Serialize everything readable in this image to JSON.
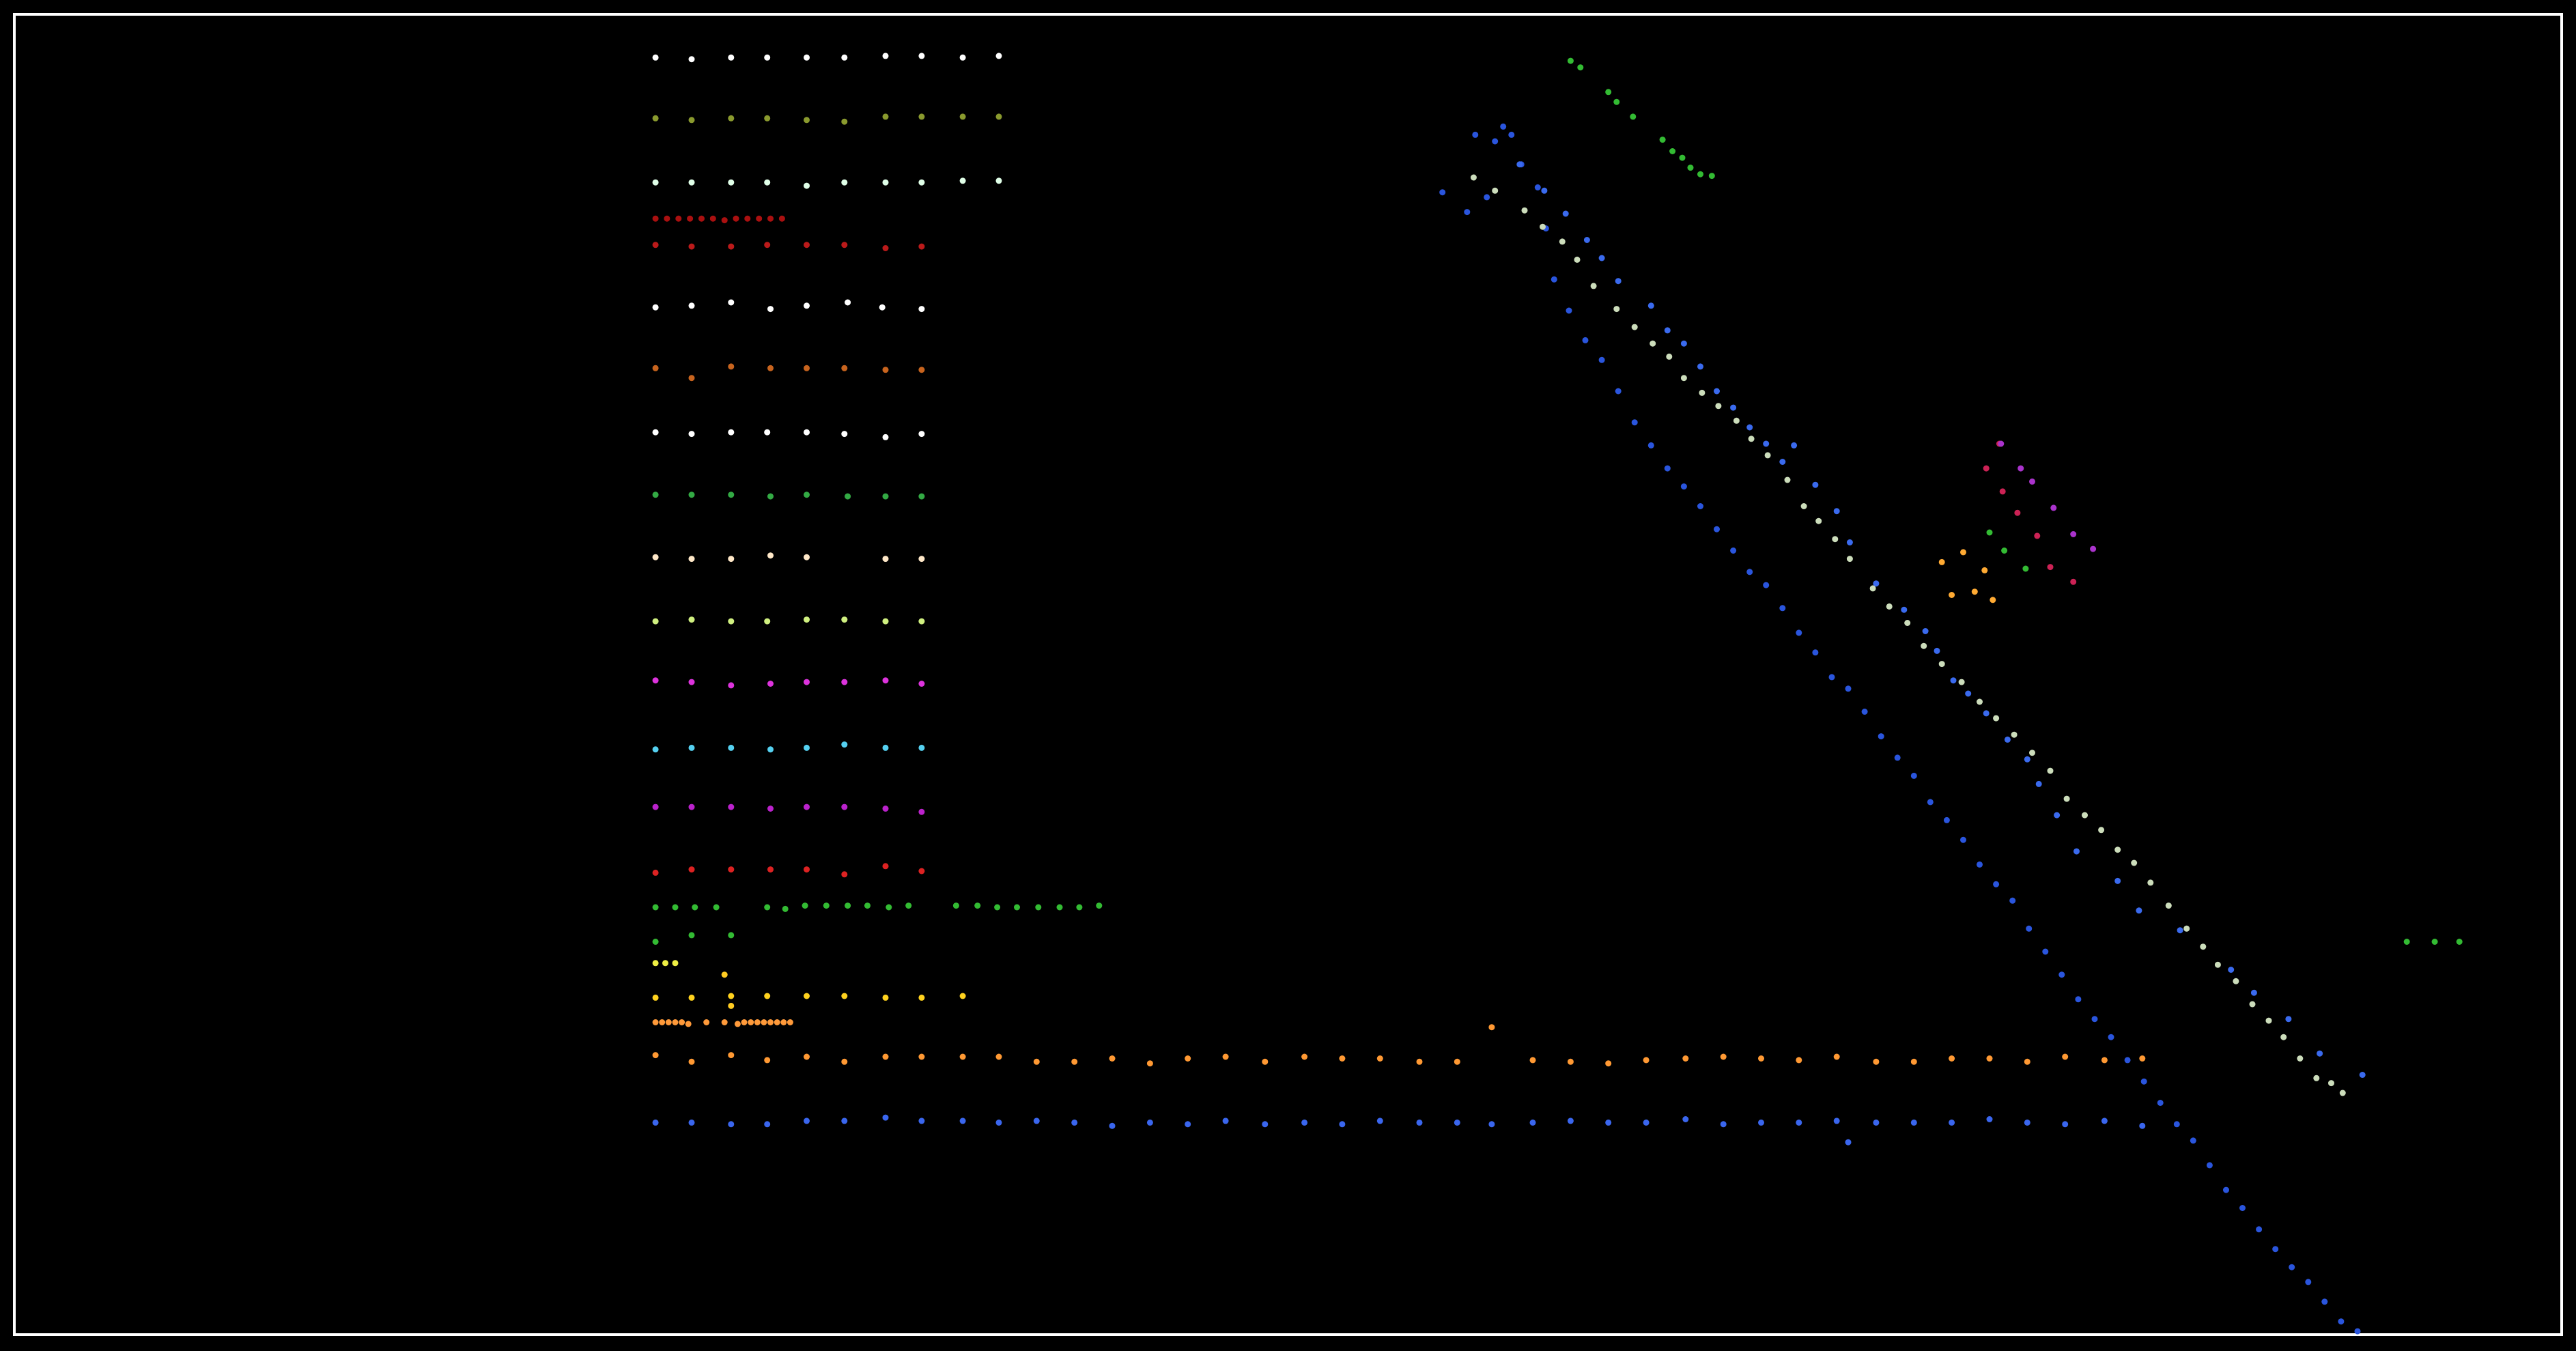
{
  "chart_data": {
    "type": "scatter",
    "title": "",
    "xlabel": "",
    "ylabel": "",
    "axes_visible": false,
    "grid": false,
    "legend": "none",
    "frame_color": "#ffffff",
    "background": "#000000",
    "xlim": [
      0,
      1568
    ],
    "ylim": [
      0,
      822
    ],
    "series": [
      {
        "color": "#ffffff",
        "x": [
          399,
          421,
          445,
          467,
          491,
          514,
          539,
          561,
          586,
          608
        ],
        "y": [
          787,
          786,
          787,
          787,
          787,
          787,
          788,
          788,
          787,
          788
        ]
      },
      {
        "color": "#8a9a2e",
        "x": [
          399,
          421,
          445,
          467,
          491,
          514,
          539,
          561,
          586,
          608
        ],
        "y": [
          750,
          749,
          750,
          750,
          749,
          748,
          751,
          751,
          751,
          751
        ]
      },
      {
        "color": "#e0ffe8",
        "x": [
          399,
          421,
          445,
          467,
          491,
          514,
          539,
          561,
          586,
          608
        ],
        "y": [
          711,
          711,
          711,
          711,
          709,
          711,
          711,
          711,
          712,
          712
        ]
      },
      {
        "color": "#aa1010",
        "x": [
          399,
          406,
          413,
          420,
          427,
          434,
          441,
          448,
          455,
          462,
          469,
          476
        ],
        "y": [
          689,
          689,
          689,
          689,
          689,
          689,
          688,
          689,
          689,
          689,
          689,
          689
        ]
      },
      {
        "color": "#bb1a1a",
        "x": [
          399,
          421,
          445,
          467,
          491,
          514,
          539,
          561
        ],
        "y": [
          673,
          672,
          672,
          673,
          673,
          673,
          671,
          672
        ]
      },
      {
        "color": "#ffffff",
        "x": [
          399,
          421,
          445,
          469,
          491,
          516,
          537,
          561
        ],
        "y": [
          635,
          636,
          638,
          634,
          636,
          638,
          635,
          634
        ]
      },
      {
        "color": "#c8641e",
        "x": [
          399,
          421,
          445,
          469,
          491,
          514,
          539,
          561
        ],
        "y": [
          598,
          592,
          599,
          598,
          598,
          598,
          597,
          597
        ]
      },
      {
        "color": "#ffffff",
        "x": [
          399,
          421,
          445,
          467,
          491,
          514,
          539,
          561
        ],
        "y": [
          559,
          558,
          559,
          559,
          559,
          558,
          556,
          558
        ]
      },
      {
        "color": "#33aa44",
        "x": [
          399,
          421,
          445,
          469,
          491,
          516,
          539,
          561
        ],
        "y": [
          521,
          521,
          521,
          520,
          521,
          520,
          520,
          520
        ]
      },
      {
        "color": "#ffe8c8",
        "x": [
          399,
          421,
          445,
          469,
          491,
          539,
          561
        ],
        "y": [
          483,
          482,
          482,
          484,
          483,
          482,
          482
        ]
      },
      {
        "color": "#d0f080",
        "x": [
          399,
          421,
          445,
          467,
          491,
          514,
          539,
          561
        ],
        "y": [
          444,
          445,
          444,
          444,
          445,
          445,
          444,
          444
        ]
      },
      {
        "color": "#dd33dd",
        "x": [
          399,
          421,
          445,
          469,
          491,
          514,
          539,
          561
        ],
        "y": [
          408,
          407,
          405,
          406,
          407,
          407,
          408,
          406
        ]
      },
      {
        "color": "#55d0f0",
        "x": [
          399,
          421,
          445,
          469,
          491,
          514,
          539,
          561
        ],
        "y": [
          366,
          367,
          367,
          366,
          367,
          369,
          367,
          367
        ]
      },
      {
        "color": "#bb22cc",
        "x": [
          399,
          421,
          445,
          469,
          491,
          514,
          539,
          561
        ],
        "y": [
          331,
          331,
          331,
          330,
          331,
          331,
          330,
          328
        ]
      },
      {
        "color": "#dd2222",
        "x": [
          399,
          421,
          445,
          469,
          491,
          514,
          539,
          561
        ],
        "y": [
          291,
          293,
          293,
          293,
          293,
          290,
          295,
          292
        ]
      },
      {
        "color": "#33bb33",
        "x": [
          399,
          411,
          423,
          436,
          467,
          478,
          490,
          503,
          516,
          528,
          541,
          553,
          582,
          595,
          607,
          619,
          632,
          645,
          657,
          669
        ],
        "y": [
          270,
          270,
          270,
          270,
          270,
          269,
          271,
          271,
          271,
          271,
          270,
          271,
          271,
          271,
          270,
          270,
          270,
          270,
          270,
          271
        ]
      },
      {
        "color": "#33bb33",
        "x": [
          399,
          421,
          445
        ],
        "y": [
          249,
          253,
          253
        ]
      },
      {
        "color": "#eeee44",
        "x": [
          399,
          405,
          411
        ],
        "y": [
          236,
          236,
          236
        ]
      },
      {
        "color": "#ffd21e",
        "x": [
          399,
          421,
          445,
          467,
          491,
          514,
          539,
          561,
          586
        ],
        "y": [
          215,
          215,
          216,
          216,
          216,
          216,
          215,
          215,
          216
        ]
      },
      {
        "color": "#ffcc22",
        "x": [
          441,
          445
        ],
        "y": [
          229,
          210
        ]
      },
      {
        "color": "#ff9a3a",
        "x": [
          399,
          403,
          407,
          411,
          415,
          419,
          430,
          441,
          449,
          453,
          457,
          461,
          465,
          469,
          473,
          477,
          481
        ],
        "y": [
          200,
          200,
          200,
          200,
          200,
          199,
          200,
          200,
          199,
          200,
          200,
          200,
          200,
          200,
          200,
          200,
          200
        ]
      },
      {
        "color": "#ff9933",
        "x": [
          399,
          421,
          445,
          467,
          491,
          514,
          539,
          561,
          586,
          608,
          631,
          654,
          677,
          700,
          723,
          746,
          770,
          794,
          817,
          840,
          864,
          887,
          908,
          933,
          956,
          979,
          1002,
          1026,
          1049,
          1072,
          1095,
          1118,
          1142,
          1165,
          1188,
          1211,
          1234,
          1257,
          1281,
          1304
        ],
        "y": [
          180,
          176,
          180,
          177,
          179,
          176,
          179,
          179,
          179,
          179,
          176,
          176,
          178,
          175,
          178,
          179,
          176,
          179,
          178,
          178,
          176,
          176,
          197,
          177,
          176,
          175,
          177,
          178,
          179,
          178,
          177,
          179,
          176,
          176,
          178,
          178,
          176,
          179,
          177,
          178
        ]
      },
      {
        "color": "#3a66ee",
        "x": [
          399,
          421,
          445,
          467,
          491,
          514,
          539,
          561,
          586,
          608,
          631,
          654,
          677,
          700,
          723,
          746,
          770,
          794,
          817,
          840,
          864,
          887,
          908,
          933,
          956,
          979,
          1002,
          1026,
          1049,
          1072,
          1095,
          1118,
          1125,
          1142,
          1165,
          1188,
          1211,
          1234,
          1257,
          1281,
          1304
        ],
        "y": [
          139,
          139,
          138,
          138,
          140,
          140,
          142,
          140,
          140,
          139,
          140,
          139,
          137,
          139,
          138,
          140,
          138,
          139,
          138,
          140,
          139,
          139,
          138,
          139,
          140,
          139,
          139,
          141,
          138,
          139,
          139,
          140,
          127,
          139,
          139,
          139,
          141,
          139,
          138,
          140,
          137
        ]
      },
      {
        "color": "#2a55dd",
        "x": [
          878,
          893,
          898,
          905,
          910,
          915,
          920,
          926,
          936,
          941,
          946,
          955,
          965,
          975,
          985,
          995,
          1005,
          1015,
          1025,
          1035,
          1045,
          1055,
          1065,
          1075,
          1085,
          1095,
          1105,
          1115,
          1125,
          1135,
          1145,
          1155,
          1165,
          1175,
          1185,
          1195,
          1205,
          1215,
          1225,
          1235,
          1245,
          1255,
          1265,
          1275,
          1285,
          1295,
          1305,
          1315,
          1325,
          1335,
          1345,
          1355,
          1365,
          1375,
          1385,
          1395,
          1405,
          1415,
          1425,
          1435
        ],
        "y": [
          705,
          693,
          740,
          702,
          736,
          745,
          740,
          722,
          708,
          683,
          652,
          633,
          615,
          603,
          584,
          565,
          551,
          537,
          526,
          514,
          500,
          487,
          474,
          466,
          452,
          437,
          425,
          410,
          403,
          389,
          374,
          361,
          350,
          334,
          323,
          311,
          296,
          284,
          274,
          257,
          243,
          229,
          214,
          202,
          191,
          177,
          164,
          151,
          138,
          128,
          113,
          98,
          87,
          74,
          62,
          51,
          42,
          30,
          18,
          12
        ]
      },
      {
        "color": "#3a6aee",
        "x": [
          925,
          940,
          953,
          966,
          975,
          985,
          1005,
          1015,
          1025,
          1035,
          1045,
          1055,
          1065,
          1075,
          1085,
          1092,
          1105,
          1118,
          1126,
          1142,
          1159,
          1172,
          1179,
          1189,
          1198,
          1209,
          1222,
          1234,
          1241,
          1252,
          1264,
          1289,
          1302,
          1327,
          1358,
          1372,
          1393,
          1412,
          1438
        ],
        "y": [
          722,
          706,
          692,
          676,
          665,
          651,
          636,
          621,
          613,
          599,
          584,
          574,
          562,
          552,
          541,
          551,
          527,
          511,
          492,
          467,
          451,
          438,
          426,
          408,
          400,
          388,
          372,
          360,
          345,
          326,
          304,
          286,
          268,
          256,
          232,
          218,
          202,
          181,
          168
        ]
      },
      {
        "color": "#ccddbb",
        "x": [
          897,
          910,
          928,
          939,
          951,
          960,
          970,
          984,
          995,
          1006,
          1016,
          1025,
          1036,
          1046,
          1057,
          1066,
          1076,
          1088,
          1098,
          1107,
          1117,
          1126,
          1140,
          1150,
          1161,
          1171,
          1182,
          1194,
          1205,
          1215,
          1226,
          1237,
          1248,
          1258,
          1269,
          1279,
          1289,
          1299,
          1309,
          1320,
          1331,
          1341,
          1350,
          1361,
          1371,
          1381,
          1390,
          1400,
          1410,
          1419,
          1426
        ],
        "y": [
          714,
          706,
          694,
          684,
          675,
          664,
          648,
          634,
          623,
          613,
          605,
          592,
          583,
          575,
          566,
          555,
          545,
          530,
          514,
          505,
          494,
          482,
          464,
          453,
          443,
          429,
          418,
          407,
          395,
          385,
          375,
          364,
          353,
          336,
          326,
          317,
          305,
          297,
          285,
          271,
          257,
          246,
          235,
          225,
          211,
          201,
          191,
          178,
          166,
          163,
          157
        ]
      },
      {
        "color": "#33bb33",
        "x": [
          956,
          962,
          979,
          984,
          994,
          1012,
          1018,
          1024,
          1029,
          1035,
          1042
        ],
        "y": [
          785,
          781,
          766,
          760,
          751,
          737,
          730,
          726,
          720,
          716,
          715
        ]
      },
      {
        "color": "#ffaa33",
        "x": [
          1182,
          1188,
          1195,
          1202,
          1208,
          1213
        ],
        "y": [
          480,
          460,
          486,
          462,
          475,
          457
        ]
      },
      {
        "color": "#33bb33",
        "x": [
          1211,
          1220,
          1233
        ],
        "y": [
          498,
          487,
          476
        ]
      },
      {
        "color": "#cc2255",
        "x": [
          1217,
          1209,
          1219,
          1228,
          1240,
          1248,
          1262
        ],
        "y": [
          552,
          537,
          523,
          510,
          496,
          477,
          468
        ]
      },
      {
        "color": "#aa33cc",
        "x": [
          1218,
          1230,
          1237,
          1250,
          1262,
          1274
        ],
        "y": [
          552,
          537,
          529,
          513,
          497,
          488
        ]
      },
      {
        "color": "#33bb33",
        "x": [
          1465,
          1482,
          1497
        ],
        "y": [
          249,
          249,
          249
        ]
      }
    ]
  }
}
